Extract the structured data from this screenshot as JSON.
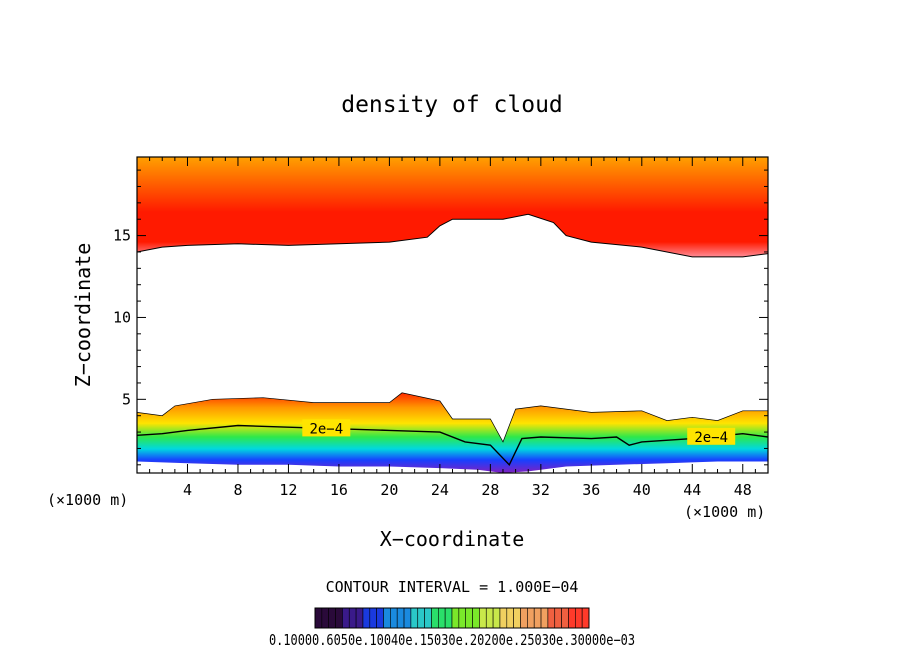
{
  "chart_data": {
    "type": "heatmap",
    "title": "density of cloud",
    "xlabel": "X−coordinate",
    "ylabel": "Z−coordinate",
    "x_unit_left": "(×1000 m)",
    "x_unit_right": "(×1000 m)",
    "xlim": [
      0,
      50
    ],
    "ylim": [
      0.5,
      19.8
    ],
    "x_ticks": [
      4,
      8,
      12,
      16,
      20,
      24,
      28,
      32,
      36,
      40,
      44,
      48
    ],
    "y_ticks": [
      5,
      10,
      15
    ],
    "contour_interval_text": "CONTOUR INTERVAL = 1.000E−04",
    "contour_labels": [
      "2e−4",
      "2e−4"
    ],
    "contour_label_x": [
      15.0,
      45.5
    ],
    "colorbar_labels_text": "0.10000.6050e.10040e.15030e.20200e.25030e.30000e−03",
    "upper_layer_base": [
      [
        0,
        14.0
      ],
      [
        2,
        14.3
      ],
      [
        4,
        14.4
      ],
      [
        8,
        14.5
      ],
      [
        12,
        14.4
      ],
      [
        16,
        14.5
      ],
      [
        20,
        14.6
      ],
      [
        23,
        14.9
      ],
      [
        24,
        15.6
      ],
      [
        25,
        16.0
      ],
      [
        27,
        16.0
      ],
      [
        29,
        16.0
      ],
      [
        31,
        16.3
      ],
      [
        33,
        15.8
      ],
      [
        34,
        15.0
      ],
      [
        36,
        14.6
      ],
      [
        40,
        14.3
      ],
      [
        44,
        13.7
      ],
      [
        48,
        13.7
      ],
      [
        50,
        13.9
      ]
    ],
    "lower_layer_top": [
      [
        0,
        4.2
      ],
      [
        2,
        4.0
      ],
      [
        3,
        4.6
      ],
      [
        6,
        5.0
      ],
      [
        10,
        5.1
      ],
      [
        14,
        4.8
      ],
      [
        18,
        4.8
      ],
      [
        20,
        4.8
      ],
      [
        21,
        5.4
      ],
      [
        24,
        4.9
      ],
      [
        25,
        3.8
      ],
      [
        28,
        3.8
      ],
      [
        29,
        2.4
      ],
      [
        30,
        4.4
      ],
      [
        32,
        4.6
      ],
      [
        36,
        4.2
      ],
      [
        40,
        4.3
      ],
      [
        42,
        3.7
      ],
      [
        44,
        3.9
      ],
      [
        46,
        3.7
      ],
      [
        48,
        4.3
      ],
      [
        50,
        4.3
      ]
    ],
    "contour_2e4": [
      [
        0,
        2.8
      ],
      [
        2,
        2.9
      ],
      [
        4,
        3.1
      ],
      [
        8,
        3.4
      ],
      [
        12,
        3.3
      ],
      [
        16,
        3.2
      ],
      [
        20,
        3.1
      ],
      [
        24,
        3.0
      ],
      [
        26,
        2.4
      ],
      [
        28,
        2.2
      ],
      [
        29.5,
        1.0
      ],
      [
        30.5,
        2.6
      ],
      [
        32,
        2.7
      ],
      [
        36,
        2.6
      ],
      [
        38,
        2.7
      ],
      [
        39,
        2.2
      ],
      [
        40,
        2.4
      ],
      [
        44,
        2.6
      ],
      [
        48,
        2.9
      ],
      [
        50,
        2.7
      ]
    ],
    "lower_layer_bottom": [
      [
        0,
        1.2
      ],
      [
        4,
        1.1
      ],
      [
        8,
        1.0
      ],
      [
        12,
        1.0
      ],
      [
        16,
        0.9
      ],
      [
        20,
        0.9
      ],
      [
        24,
        0.8
      ],
      [
        27,
        0.7
      ],
      [
        29,
        0.5
      ],
      [
        31,
        0.6
      ],
      [
        34,
        0.9
      ],
      [
        38,
        1.0
      ],
      [
        42,
        1.1
      ],
      [
        46,
        1.2
      ],
      [
        50,
        1.2
      ]
    ],
    "colors": {
      "upper_top": "#ffa000",
      "upper_mid": "#ff1a00",
      "upper_edge": "#ff8c96",
      "lower_red": "#ff2a00",
      "lower_orange": "#ff9600",
      "lower_yellow": "#ffe400",
      "lower_green": "#2ee84a",
      "lower_cyan": "#00d8e0",
      "lower_blue": "#1840ff",
      "lower_purple": "#8020c0"
    },
    "colorbar_colors": [
      "#2a0a3a",
      "#3a1a8a",
      "#1a3adf",
      "#1a8adf",
      "#2ac8c8",
      "#2adf6a",
      "#7ae82a",
      "#c8e84a",
      "#f0d060",
      "#f0a060",
      "#f06040",
      "#ff3a2a"
    ]
  }
}
